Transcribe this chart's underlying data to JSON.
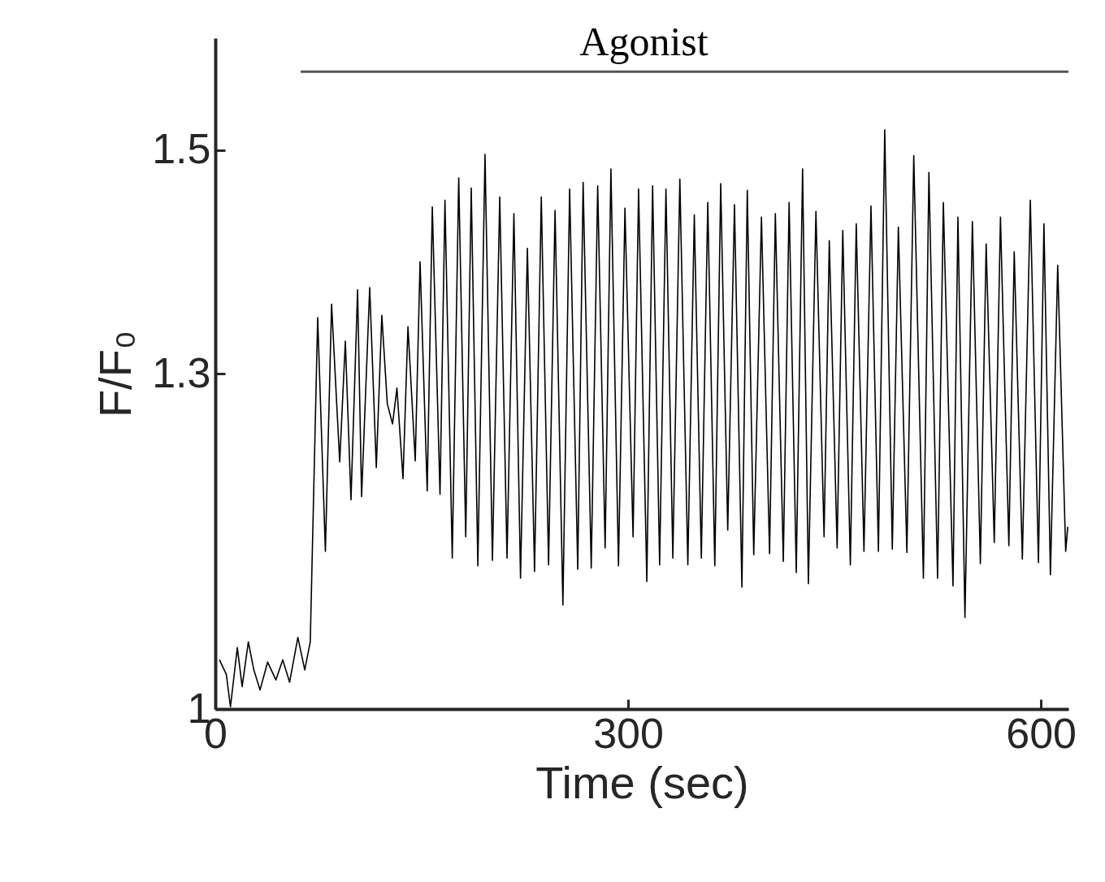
{
  "chart_data": {
    "type": "line",
    "xlabel": "Time (sec)",
    "ylabel": "F/F₀",
    "xlim": [
      0,
      620
    ],
    "ylim": [
      1,
      1.6
    ],
    "xticks": [
      0,
      300,
      600
    ],
    "yticks": [
      {
        "value": 1,
        "label": "1"
      },
      1.3,
      1.5
    ],
    "grid": false,
    "marker": "none",
    "line_style": "solid",
    "annotations": [
      {
        "text": "Agonist",
        "x": 341,
        "y": 1.57
      }
    ],
    "series": [
      {
        "color": "#555555",
        "x": [
          62,
          620
        ],
        "values": [
          1.57,
          1.57
        ]
      },
      {
        "color": "#000000",
        "x": [
          3,
          8,
          11,
          16,
          19.5,
          24,
          28,
          32.5,
          38,
          44,
          49,
          54,
          60,
          65,
          69,
          74.4,
          80,
          84.5,
          90.4,
          94.5,
          98.6,
          103.4,
          106.3,
          112.2,
          117,
          121,
          125,
          128.8,
          132,
          136.4,
          140,
          145.3,
          148.8,
          154,
          157.7,
          163.3,
          166.9,
          172.2,
          176.9,
          182,
          186,
          190.8,
          196,
          201.4,
          206.7,
          212,
          217,
          221.8,
          226.8,
          232,
          236.9,
          242.2,
          246.9,
          252.6,
          257.5,
          263.4,
          267.3,
          273.2,
          277.9,
          283.3,
          287.5,
          293,
          297.7,
          303.6,
          307.6,
          313.6,
          317.8,
          322.9,
          327.5,
          332.5,
          337.6,
          343.4,
          348.1,
          353.2,
          357.9,
          363,
          367.3,
          372.4,
          377.3,
          382.7,
          386.6,
          391.3,
          396.9,
          402.8,
          407,
          412.8,
          417,
          422.2,
          426.8,
          431,
          436.5,
          442.4,
          446.2,
          451.9,
          456,
          461.5,
          465.8,
          471.4,
          476.5,
          481.9,
          486.5,
          492,
          496.4,
          502.6,
          507.6,
          514.6,
          518.6,
          524.9,
          529.1,
          536.1,
          539.7,
          544.8,
          550.2,
          556,
          560.2,
          566.1,
          570.6,
          576.7,
          580.6,
          586.5,
          592.3,
          598.2,
          602.2,
          606.9,
          612.2,
          618,
          619.5
        ],
        "values": [
          1.044,
          1.031,
          1.002,
          1.055,
          1.02,
          1.06,
          1.035,
          1.017,
          1.042,
          1.026,
          1.044,
          1.024,
          1.064,
          1.035,
          1.06,
          1.35,
          1.141,
          1.362,
          1.221,
          1.329,
          1.187,
          1.375,
          1.19,
          1.377,
          1.216,
          1.352,
          1.273,
          1.255,
          1.287,
          1.206,
          1.342,
          1.222,
          1.4,
          1.195,
          1.449,
          1.192,
          1.455,
          1.135,
          1.475,
          1.154,
          1.466,
          1.128,
          1.496,
          1.133,
          1.458,
          1.135,
          1.443,
          1.117,
          1.412,
          1.123,
          1.458,
          1.129,
          1.446,
          1.093,
          1.465,
          1.125,
          1.471,
          1.126,
          1.468,
          1.144,
          1.483,
          1.128,
          1.448,
          1.154,
          1.465,
          1.114,
          1.468,
          1.129,
          1.465,
          1.135,
          1.474,
          1.129,
          1.442,
          1.135,
          1.453,
          1.128,
          1.47,
          1.16,
          1.451,
          1.109,
          1.464,
          1.138,
          1.44,
          1.139,
          1.443,
          1.132,
          1.453,
          1.122,
          1.483,
          1.112,
          1.445,
          1.154,
          1.419,
          1.144,
          1.428,
          1.129,
          1.434,
          1.141,
          1.45,
          1.141,
          1.518,
          1.143,
          1.431,
          1.14,
          1.495,
          1.117,
          1.48,
          1.117,
          1.453,
          1.11,
          1.44,
          1.082,
          1.436,
          1.13,
          1.416,
          1.149,
          1.44,
          1.146,
          1.409,
          1.134,
          1.455,
          1.131,
          1.434,
          1.12,
          1.397,
          1.141,
          1.163
        ]
      }
    ]
  }
}
